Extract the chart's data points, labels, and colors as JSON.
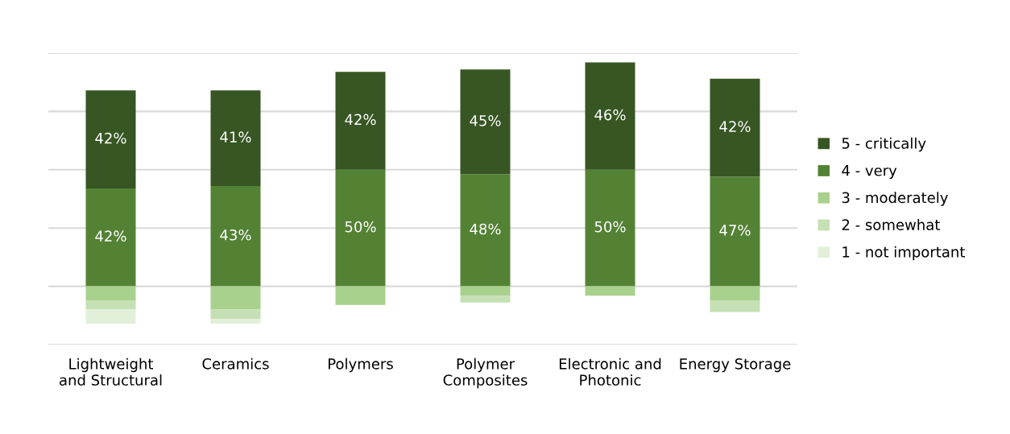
{
  "chart_data": {
    "type": "bar",
    "stacked": true,
    "categories": [
      "Lightweight\nand Structural",
      "Ceramics",
      "Polymers",
      "Polymer\nComposites",
      "Electronic and\nPhotonic",
      "Energy Storage"
    ],
    "series": [
      {
        "name": "4 - very",
        "color": "#548235",
        "values": [
          42,
          43,
          50,
          48,
          50,
          47
        ],
        "value_labels": [
          "42%",
          "43%",
          "50%",
          "48%",
          "50%",
          "47%"
        ]
      },
      {
        "name": "5 - critically",
        "color": "#375623",
        "values": [
          42,
          41,
          42,
          45,
          46,
          42
        ],
        "value_labels": [
          "42%",
          "41%",
          "42%",
          "45%",
          "46%",
          "42%"
        ]
      },
      {
        "name": "3 - moderately",
        "color": "#a9d18e",
        "values": [
          -6,
          -10,
          -8,
          -4,
          -4,
          -6
        ]
      },
      {
        "name": "2 - somewhat",
        "color": "#c5e0b4",
        "values": [
          -4,
          -4,
          0,
          -3,
          0,
          -5
        ]
      },
      {
        "name": "1 - not important",
        "color": "#e2f0d9",
        "values": [
          -6,
          -2,
          0,
          0,
          0,
          0
        ]
      }
    ],
    "ylim": [
      -25,
      100
    ],
    "yticks": [
      {
        "value": -25,
        "label": null
      },
      {
        "value": 0,
        "label": null
      },
      {
        "value": 25,
        "label": null
      },
      {
        "value": 50,
        "label": null
      },
      {
        "value": 75,
        "label": null
      },
      {
        "value": 100,
        "label": null
      }
    ],
    "tick_labels": "x",
    "grid": "y",
    "legend": "right"
  }
}
